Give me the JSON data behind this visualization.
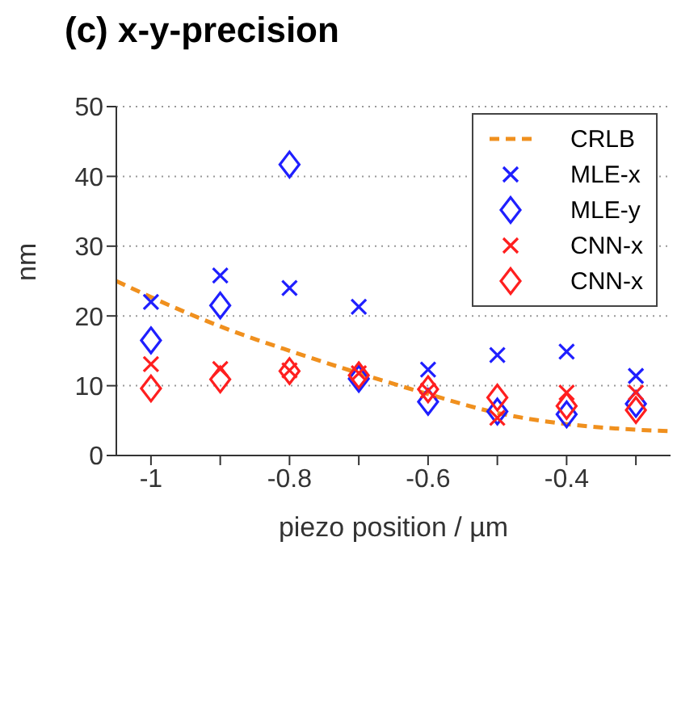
{
  "chart_data": {
    "type": "scatter",
    "title": "(c) x-y-precision",
    "xlabel": "piezo position / µm",
    "ylabel": "nm",
    "xlim": [
      -1.05,
      -0.25
    ],
    "xticks": [
      -1,
      {
        "value": -0.9,
        "label": null
      },
      -0.8,
      {
        "value": -0.7,
        "label": null
      },
      -0.6,
      {
        "value": -0.5,
        "label": null
      },
      -0.4,
      {
        "value": -0.3,
        "label": null
      }
    ],
    "ylim": [
      0,
      50
    ],
    "yticks": [
      0,
      10,
      20,
      30,
      40,
      50
    ],
    "grid": "y",
    "legend": "top right",
    "series": [
      {
        "name": "CRLB",
        "type": "line",
        "line_style": "dashed",
        "marker": "none",
        "color": "#f0901e",
        "x": [
          -1.05,
          -1,
          -0.9,
          -0.8,
          -0.7,
          -0.6,
          -0.5,
          -0.4,
          -0.3,
          -0.25
        ],
        "values": [
          25,
          22.7,
          18.5,
          15,
          11.8,
          8.8,
          6.1,
          4.5,
          3.7,
          3.5
        ]
      },
      {
        "name": "MLE-x",
        "marker": "cross",
        "color": "#1f1fff",
        "x": [
          -1,
          -0.9,
          -0.8,
          -0.7,
          -0.6,
          -0.5,
          -0.4,
          -0.3
        ],
        "values": [
          22,
          25.8,
          24,
          21.3,
          12.3,
          14.4,
          14.9,
          11.4
        ]
      },
      {
        "name": "MLE-y",
        "marker": "diamond",
        "color": "#1f1fff",
        "x": [
          -1,
          -0.9,
          -0.8,
          -0.7,
          -0.6,
          -0.5,
          -0.4,
          -0.3
        ],
        "values": [
          16.5,
          21.5,
          41.7,
          11,
          7.7,
          6.3,
          5.9,
          7.4
        ]
      },
      {
        "name": "CNN-x",
        "marker": "cross",
        "color": "#ff1f1f",
        "x": [
          -1,
          -0.9,
          -0.8,
          -0.7,
          -0.6,
          -0.5,
          -0.4,
          -0.3
        ],
        "values": [
          13.1,
          12.4,
          12.2,
          11.8,
          9.3,
          5.4,
          9,
          9
        ]
      },
      {
        "name": "CNN-x",
        "marker": "diamond",
        "color": "#ff1f1f",
        "x": [
          -1,
          -0.9,
          -0.8,
          -0.7,
          -0.6,
          -0.5,
          -0.4,
          -0.3
        ],
        "values": [
          9.6,
          10.9,
          12.1,
          11.5,
          9.5,
          8.3,
          7.1,
          6.5
        ]
      }
    ]
  }
}
